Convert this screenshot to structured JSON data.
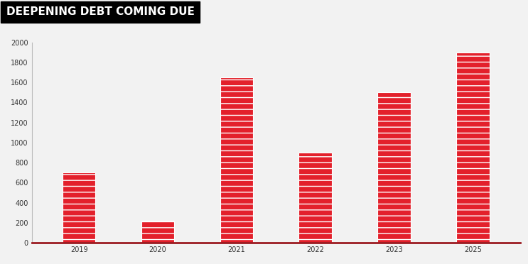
{
  "chart_data": {
    "type": "bar",
    "title": "DEEPENING DEBT COMING DUE",
    "categories": [
      "2019",
      "2020",
      "2021",
      "2022",
      "2023",
      "2025"
    ],
    "values": [
      700,
      220,
      1650,
      900,
      1500,
      1900
    ],
    "color": "#e3202b",
    "ylim": [
      0,
      2000
    ],
    "yticks": [
      0,
      200,
      400,
      600,
      800,
      1000,
      1200,
      1400,
      1600,
      1800,
      2000
    ],
    "grid": false
  }
}
